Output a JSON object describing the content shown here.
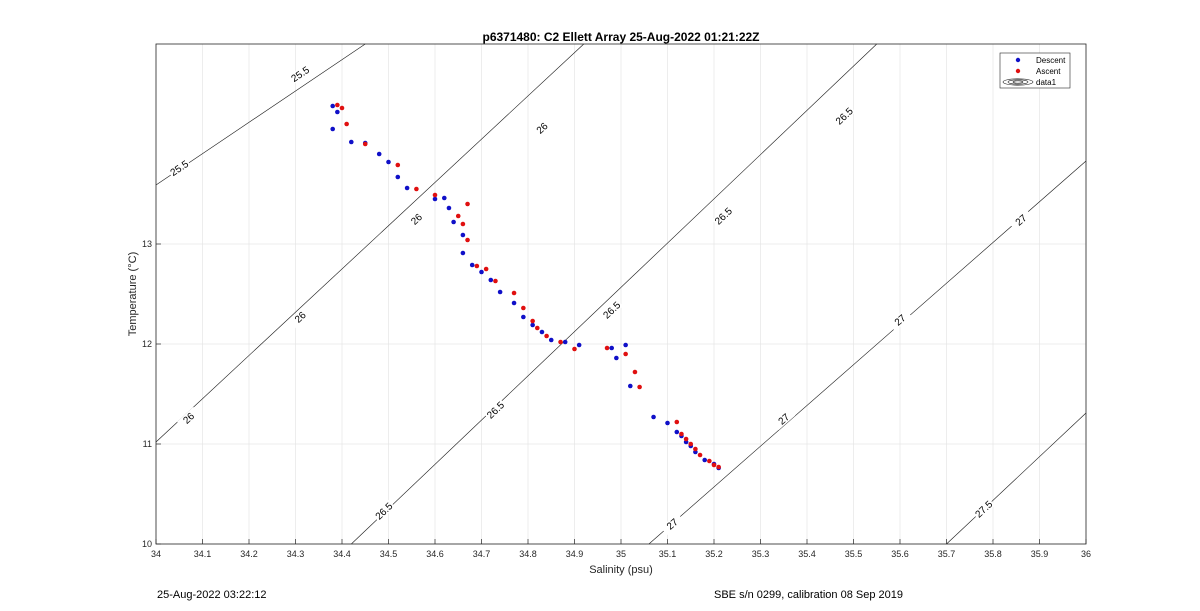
{
  "footer": {
    "left": "25-Aug-2022 03:22:12",
    "right": "SBE s/n 0299, calibration 08 Sep 2019"
  },
  "chart_data": {
    "type": "scatter",
    "title": "p6371480: C2 Ellett Array 25-Aug-2022 01:21:22Z",
    "xlabel": "Salinity (psu)",
    "ylabel": "Temperature (°C)",
    "xlim": [
      34,
      36
    ],
    "ylim": [
      10,
      15
    ],
    "x_ticks": [
      34,
      34.1,
      34.2,
      34.3,
      34.4,
      34.5,
      34.6,
      34.7,
      34.8,
      34.9,
      35,
      35.1,
      35.2,
      35.3,
      35.4,
      35.5,
      35.6,
      35.7,
      35.8,
      35.9,
      36
    ],
    "x_tick_labels": [
      "34",
      "34.1",
      "34.2",
      "34.3",
      "34.4",
      "34.5",
      "34.6",
      "34.7",
      "34.8",
      "34.9",
      "35",
      "35.1",
      "35.2",
      "35.3",
      "35.4",
      "35.5",
      "35.6",
      "35.7",
      "35.8",
      "35.9",
      "36"
    ],
    "y_ticks": [
      10,
      11,
      12,
      13
    ],
    "y_tick_labels": [
      "10",
      "11",
      "12",
      "13"
    ],
    "grid": true,
    "legend_position": "top-right",
    "legend": [
      {
        "label": "Descent",
        "color": "#1010c8",
        "marker": "dot"
      },
      {
        "label": "Ascent",
        "color": "#e01010",
        "marker": "dot"
      },
      {
        "label": "data1",
        "marker": "contour"
      }
    ],
    "isopycnals": [
      {
        "label": "25.5",
        "s1": 34,
        "t1": 13.59,
        "s2": 34.45,
        "t2": 15.0
      },
      {
        "label": "26",
        "s1": 34,
        "t1": 11.02,
        "s2": 34.92,
        "t2": 15.0
      },
      {
        "label": "26.5",
        "s1": 34.42,
        "t1": 10.0,
        "s2": 35.55,
        "t2": 15.0
      },
      {
        "label": "27",
        "s1": 35.06,
        "t1": 10.0,
        "s2": 36,
        "t2": 13.83
      },
      {
        "label": "27.5",
        "s1": 35.7,
        "t1": 10.0,
        "s2": 36,
        "t2": 11.31
      }
    ],
    "contour_labels": [
      {
        "text": "25.5",
        "s": 34.31,
        "t": 14.7
      },
      {
        "text": "25.5",
        "s": 34.05,
        "t": 13.76
      },
      {
        "text": "26",
        "s": 34.83,
        "t": 14.16
      },
      {
        "text": "26",
        "s": 34.56,
        "t": 13.25
      },
      {
        "text": "26",
        "s": 34.31,
        "t": 12.27
      },
      {
        "text": "26",
        "s": 34.07,
        "t": 11.26
      },
      {
        "text": "26.5",
        "s": 35.48,
        "t": 14.28
      },
      {
        "text": "26.5",
        "s": 35.22,
        "t": 13.28
      },
      {
        "text": "26.5",
        "s": 34.98,
        "t": 12.34
      },
      {
        "text": "26.5",
        "s": 34.73,
        "t": 11.34
      },
      {
        "text": "26.5",
        "s": 34.49,
        "t": 10.33
      },
      {
        "text": "27",
        "s": 35.86,
        "t": 13.24
      },
      {
        "text": "27",
        "s": 35.6,
        "t": 12.24
      },
      {
        "text": "27",
        "s": 35.35,
        "t": 11.25
      },
      {
        "text": "27",
        "s": 35.11,
        "t": 10.2
      },
      {
        "text": "27.5",
        "s": 35.78,
        "t": 10.35
      }
    ],
    "series": [
      {
        "name": "Descent",
        "color": "#1010c8",
        "points": [
          [
            34.38,
            14.38
          ],
          [
            34.39,
            14.32
          ],
          [
            34.38,
            14.15
          ],
          [
            34.42,
            14.02
          ],
          [
            34.45,
            14.01
          ],
          [
            34.48,
            13.9
          ],
          [
            34.5,
            13.82
          ],
          [
            34.52,
            13.67
          ],
          [
            34.54,
            13.56
          ],
          [
            34.6,
            13.45
          ],
          [
            34.62,
            13.46
          ],
          [
            34.63,
            13.36
          ],
          [
            34.64,
            13.22
          ],
          [
            34.66,
            13.09
          ],
          [
            34.66,
            12.91
          ],
          [
            34.68,
            12.79
          ],
          [
            34.7,
            12.72
          ],
          [
            34.72,
            12.64
          ],
          [
            34.74,
            12.52
          ],
          [
            34.77,
            12.41
          ],
          [
            34.79,
            12.27
          ],
          [
            34.81,
            12.19
          ],
          [
            34.83,
            12.12
          ],
          [
            34.85,
            12.04
          ],
          [
            34.88,
            12.02
          ],
          [
            34.91,
            11.99
          ],
          [
            34.98,
            11.96
          ],
          [
            34.99,
            11.86
          ],
          [
            35.01,
            11.99
          ],
          [
            35.02,
            11.58
          ],
          [
            35.07,
            11.27
          ],
          [
            35.1,
            11.21
          ],
          [
            35.12,
            11.12
          ],
          [
            35.13,
            11.08
          ],
          [
            35.14,
            11.02
          ],
          [
            35.15,
            10.98
          ],
          [
            35.16,
            10.92
          ],
          [
            35.18,
            10.84
          ],
          [
            35.2,
            10.8
          ],
          [
            35.21,
            10.76
          ]
        ]
      },
      {
        "name": "Ascent",
        "color": "#e01010",
        "points": [
          [
            34.39,
            14.39
          ],
          [
            34.4,
            14.36
          ],
          [
            34.41,
            14.2
          ],
          [
            34.45,
            14.0
          ],
          [
            34.52,
            13.79
          ],
          [
            34.56,
            13.55
          ],
          [
            34.6,
            13.49
          ],
          [
            34.65,
            13.28
          ],
          [
            34.66,
            13.2
          ],
          [
            34.67,
            13.4
          ],
          [
            34.67,
            13.04
          ],
          [
            34.69,
            12.78
          ],
          [
            34.71,
            12.75
          ],
          [
            34.73,
            12.63
          ],
          [
            34.77,
            12.51
          ],
          [
            34.79,
            12.36
          ],
          [
            34.81,
            12.23
          ],
          [
            34.82,
            12.16
          ],
          [
            34.84,
            12.08
          ],
          [
            34.87,
            12.02
          ],
          [
            34.9,
            11.95
          ],
          [
            34.97,
            11.96
          ],
          [
            35.01,
            11.9
          ],
          [
            35.03,
            11.72
          ],
          [
            35.04,
            11.57
          ],
          [
            35.12,
            11.22
          ],
          [
            35.13,
            11.1
          ],
          [
            35.14,
            11.05
          ],
          [
            35.15,
            11.0
          ],
          [
            35.16,
            10.95
          ],
          [
            35.17,
            10.89
          ],
          [
            35.19,
            10.83
          ],
          [
            35.2,
            10.79
          ],
          [
            35.21,
            10.77
          ]
        ]
      }
    ]
  }
}
